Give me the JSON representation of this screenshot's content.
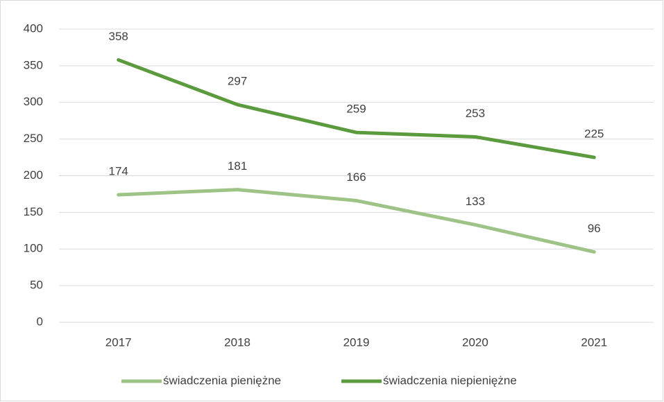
{
  "chart_data": {
    "type": "line",
    "categories": [
      "2017",
      "2018",
      "2019",
      "2020",
      "2021"
    ],
    "series": [
      {
        "name": "świadczenia pieniężne",
        "color": "#9dc387",
        "values": [
          174,
          181,
          166,
          133,
          96
        ]
      },
      {
        "name": "świadczenia niepieniężne",
        "color": "#5b9a3d",
        "values": [
          358,
          297,
          259,
          253,
          225
        ]
      }
    ],
    "ylim": [
      0,
      400
    ],
    "yticks": [
      0,
      50,
      100,
      150,
      200,
      250,
      300,
      350,
      400
    ],
    "grid": true,
    "legend": "bottom"
  }
}
